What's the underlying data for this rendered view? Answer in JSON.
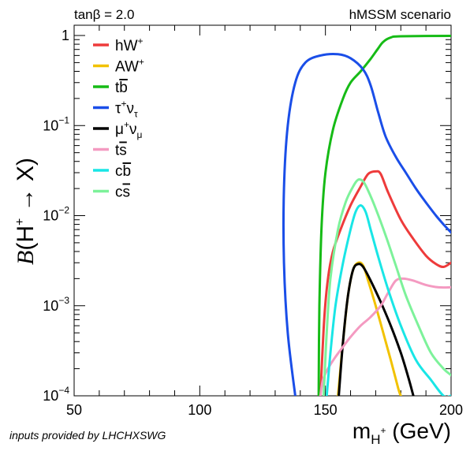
{
  "header": {
    "left": "tanβ = 2.0",
    "right": "hMSSM scenario"
  },
  "credit": "inputs provided by LHCHXSWG",
  "chart_data": {
    "type": "line",
    "xscale": "linear",
    "yscale": "log",
    "xlim": [
      50,
      200
    ],
    "ylim": [
      0.0001,
      1.3
    ],
    "xticks": [
      50,
      100,
      150,
      200
    ],
    "xlabel": {
      "base": "m",
      "sub": "H",
      "sup": "+",
      "unit": " (GeV)"
    },
    "ylabel": {
      "func": "B",
      "arg": "(H",
      "sup": "+",
      "arrow": " → X)"
    },
    "yticks": [
      {
        "value": 1,
        "base": "1",
        "exp": ""
      },
      {
        "value": 0.1,
        "base": "10",
        "exp": "−1"
      },
      {
        "value": 0.01,
        "base": "10",
        "exp": "−2"
      },
      {
        "value": 0.001,
        "base": "10",
        "exp": "−3"
      },
      {
        "value": 0.0001,
        "base": "10",
        "exp": "−4"
      }
    ],
    "grid": false,
    "legend_position": "top-left",
    "series": [
      {
        "key": "hW",
        "name": "hW+",
        "label": {
          "main": "hW",
          "sup": "+"
        },
        "color": "#ee3b3b",
        "points": [
          [
            148,
            0.0001
          ],
          [
            149.5,
            0.0007
          ],
          [
            151,
            0.002
          ],
          [
            153,
            0.004
          ],
          [
            156,
            0.007
          ],
          [
            160,
            0.013
          ],
          [
            164,
            0.021
          ],
          [
            167,
            0.029
          ],
          [
            170,
            0.031
          ],
          [
            172,
            0.029
          ],
          [
            175,
            0.018
          ],
          [
            180,
            0.009
          ],
          [
            185,
            0.0055
          ],
          [
            190,
            0.0036
          ],
          [
            194,
            0.0029
          ],
          [
            197,
            0.0027
          ],
          [
            200,
            0.003
          ]
        ]
      },
      {
        "key": "AW",
        "name": "AW+",
        "label": {
          "main": "AW",
          "sup": "+"
        },
        "color": "#f2c200",
        "points": [
          [
            155,
            0.0001
          ],
          [
            157,
            0.0004
          ],
          [
            159,
            0.0013
          ],
          [
            161,
            0.0025
          ],
          [
            163,
            0.003
          ],
          [
            165,
            0.0028
          ],
          [
            167,
            0.0019
          ],
          [
            170,
            0.001
          ],
          [
            173,
            0.0005
          ],
          [
            176,
            0.00025
          ],
          [
            179,
            0.00012
          ],
          [
            180,
            0.0001
          ]
        ]
      },
      {
        "key": "tb",
        "name": "tb̄",
        "label": {
          "main": "t",
          "bar": "b"
        },
        "color": "#16bb16",
        "points": [
          [
            147.3,
            0.0001
          ],
          [
            147.6,
            0.001
          ],
          [
            148.5,
            0.008
          ],
          [
            150,
            0.03
          ],
          [
            153,
            0.09
          ],
          [
            157,
            0.2
          ],
          [
            160,
            0.3
          ],
          [
            164,
            0.4
          ],
          [
            168,
            0.55
          ],
          [
            171,
            0.72
          ],
          [
            173,
            0.85
          ],
          [
            176,
            0.95
          ],
          [
            180,
            0.98
          ],
          [
            200,
            0.99
          ]
        ]
      },
      {
        "key": "tau",
        "name": "τ+ντ",
        "label": {
          "main": "τ",
          "sup": "+",
          "main2": "ν",
          "sub": "τ"
        },
        "color": "#1a4ee8",
        "points": [
          [
            138,
            0.0001
          ],
          [
            135,
            0.0005
          ],
          [
            133.5,
            0.003
          ],
          [
            133.5,
            0.02
          ],
          [
            135,
            0.1
          ],
          [
            138,
            0.3
          ],
          [
            142,
            0.5
          ],
          [
            148,
            0.6
          ],
          [
            155,
            0.62
          ],
          [
            160,
            0.56
          ],
          [
            165,
            0.42
          ],
          [
            168,
            0.28
          ],
          [
            171,
            0.14
          ],
          [
            174,
            0.075
          ],
          [
            178,
            0.045
          ],
          [
            182,
            0.03
          ],
          [
            186,
            0.02
          ],
          [
            190,
            0.014
          ],
          [
            194,
            0.01
          ],
          [
            197,
            0.008
          ],
          [
            200,
            0.0065
          ]
        ]
      },
      {
        "key": "mu",
        "name": "μ+νμ",
        "label": {
          "main": "μ",
          "sup": "+",
          "main2": "ν",
          "sub": "μ"
        },
        "color": "#000000",
        "points": [
          [
            155.3,
            0.0001
          ],
          [
            157,
            0.0004
          ],
          [
            159,
            0.0013
          ],
          [
            161,
            0.0025
          ],
          [
            163,
            0.0029
          ],
          [
            165,
            0.0027
          ],
          [
            168,
            0.0019
          ],
          [
            172,
            0.0011
          ],
          [
            176,
            0.0006
          ],
          [
            180,
            0.0003
          ],
          [
            183,
            0.00016
          ],
          [
            185,
            0.0001
          ]
        ]
      },
      {
        "key": "ts",
        "name": "ts̄",
        "label": {
          "main": "t",
          "bar": "s"
        },
        "color": "#f49ac1",
        "points": [
          [
            148,
            0.0001
          ],
          [
            149,
            0.00015
          ],
          [
            151,
            0.0002
          ],
          [
            154,
            0.00027
          ],
          [
            157,
            0.00035
          ],
          [
            160,
            0.00045
          ],
          [
            164,
            0.0006
          ],
          [
            168,
            0.00075
          ],
          [
            172,
            0.001
          ],
          [
            175,
            0.0014
          ],
          [
            178,
            0.0019
          ],
          [
            181,
            0.002
          ],
          [
            185,
            0.0019
          ],
          [
            190,
            0.0017
          ],
          [
            195,
            0.0016
          ],
          [
            200,
            0.0016
          ]
        ]
      },
      {
        "key": "cb",
        "name": "cb̄",
        "label": {
          "main": "c",
          "bar": "b"
        },
        "color": "#19e6e6",
        "points": [
          [
            150.5,
            0.0001
          ],
          [
            152,
            0.0003
          ],
          [
            154,
            0.001
          ],
          [
            157,
            0.003
          ],
          [
            160,
            0.007
          ],
          [
            162,
            0.011
          ],
          [
            164,
            0.013
          ],
          [
            166,
            0.011
          ],
          [
            168,
            0.007
          ],
          [
            171,
            0.0035
          ],
          [
            175,
            0.0015
          ],
          [
            180,
            0.0006
          ],
          [
            186,
            0.00025
          ],
          [
            192,
            0.00015
          ],
          [
            197,
            0.0001
          ],
          [
            200,
            0.0001
          ]
        ]
      },
      {
        "key": "cs",
        "name": "cs̄",
        "label": {
          "main": "c",
          "bar": "s"
        },
        "color": "#7df29a",
        "points": [
          [
            149.3,
            0.0001
          ],
          [
            150.5,
            0.0005
          ],
          [
            152,
            0.002
          ],
          [
            155,
            0.007
          ],
          [
            158,
            0.014
          ],
          [
            161,
            0.021
          ],
          [
            163,
            0.025
          ],
          [
            165,
            0.024
          ],
          [
            167,
            0.019
          ],
          [
            170,
            0.012
          ],
          [
            174,
            0.006
          ],
          [
            178,
            0.0028
          ],
          [
            182,
            0.0013
          ],
          [
            187,
            0.0006
          ],
          [
            192,
            0.0003
          ],
          [
            197,
            0.0002
          ],
          [
            200,
            0.00017
          ]
        ]
      }
    ]
  }
}
